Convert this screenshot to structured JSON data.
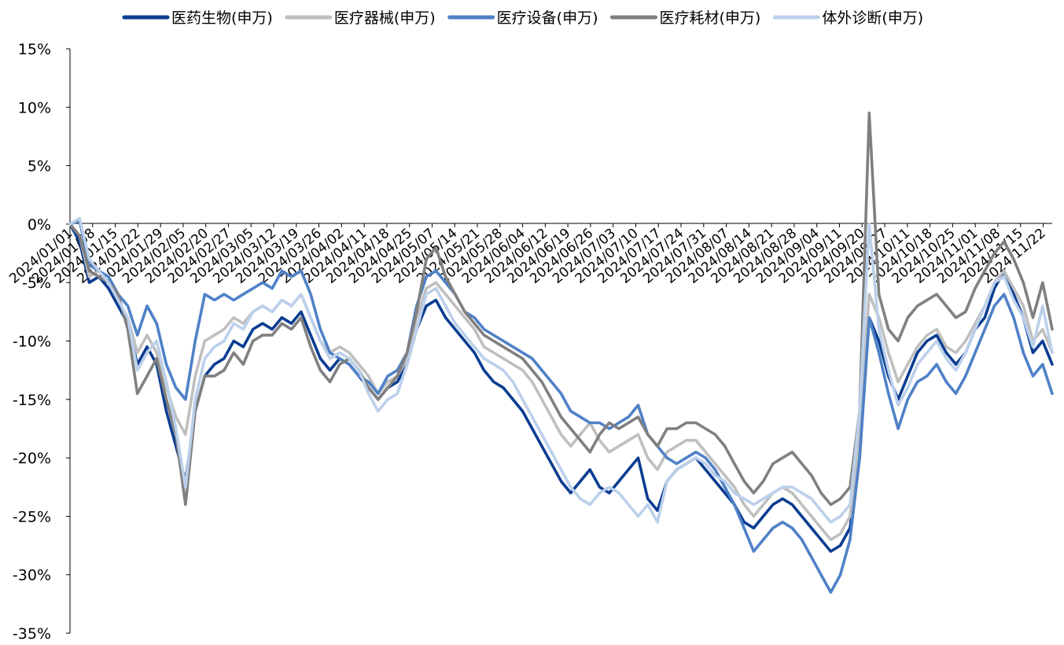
{
  "chart_data": {
    "type": "line",
    "title": "",
    "xlabel": "",
    "ylabel": "",
    "ylim": [
      -35,
      15
    ],
    "yticks": [
      15,
      10,
      5,
      0,
      -5,
      -10,
      -15,
      -20,
      -25,
      -30,
      -35
    ],
    "ytick_labels": [
      "15%",
      "10%",
      "5%",
      "0%",
      "-5%",
      "-10%",
      "-15%",
      "-20%",
      "-25%",
      "-30%",
      "-35%"
    ],
    "xlim": [
      "2024/01/01",
      "2024/11/29"
    ],
    "xtick_labels": [
      "2024/01/01",
      "2024/01/08",
      "2024/01/15",
      "2024/01/22",
      "2024/01/29",
      "2024/02/05",
      "2024/02/20",
      "2024/02/27",
      "2024/03/05",
      "2024/03/12",
      "2024/03/19",
      "2024/03/26",
      "2024/04/02",
      "2024/04/11",
      "2024/04/18",
      "2024/04/25",
      "2024/05/07",
      "2024/05/14",
      "2024/05/21",
      "2024/05/28",
      "2024/06/04",
      "2024/06/12",
      "2024/06/19",
      "2024/06/26",
      "2024/07/03",
      "2024/07/10",
      "2024/07/17",
      "2024/07/24",
      "2024/07/31",
      "2024/08/07",
      "2024/08/14",
      "2024/08/21",
      "2024/08/28",
      "2024/09/04",
      "2024/09/11",
      "2024/09/20",
      "2024/09/27",
      "2024/10/11",
      "2024/10/18",
      "2024/10/25",
      "2024/11/01",
      "2024/11/08",
      "2024/11/15",
      "2024/11/22"
    ],
    "grid": false,
    "legend": "top",
    "series": [
      {
        "name": "医药生物(申万)",
        "color": "#0B3D91",
        "values": [
          0.0,
          -1.5,
          -5.0,
          -4.5,
          -5.5,
          -7.0,
          -8.5,
          -12.0,
          -10.5,
          -12.0,
          -16.0,
          -19.0,
          -22.0,
          -16.0,
          -13.0,
          -12.0,
          -11.5,
          -10.0,
          -10.5,
          -9.0,
          -8.5,
          -9.0,
          -8.0,
          -8.5,
          -7.5,
          -9.5,
          -11.5,
          -12.5,
          -11.5,
          -12.0,
          -13.0,
          -14.0,
          -15.0,
          -14.0,
          -13.5,
          -12.0,
          -9.0,
          -7.0,
          -6.5,
          -8.0,
          -9.0,
          -10.0,
          -11.0,
          -12.5,
          -13.5,
          -14.0,
          -15.0,
          -16.0,
          -17.5,
          -19.0,
          -20.5,
          -22.0,
          -23.0,
          -22.0,
          -21.0,
          -22.5,
          -23.0,
          -22.0,
          -21.0,
          -20.0,
          -23.5,
          -24.5,
          -22.0,
          -21.0,
          -20.5,
          -20.0,
          -21.0,
          -22.0,
          -23.0,
          -24.0,
          -25.5,
          -26.0,
          -25.0,
          -24.0,
          -23.5,
          -24.0,
          -25.0,
          -26.0,
          -27.0,
          -28.0,
          -27.5,
          -26.0,
          -20.0,
          -8.0,
          -10.0,
          -13.0,
          -15.0,
          -13.0,
          -11.0,
          -10.0,
          -9.5,
          -11.0,
          -12.0,
          -11.0,
          -9.0,
          -8.0,
          -5.5,
          -4.0,
          -6.0,
          -8.0,
          -11.0,
          -10.0,
          -12.0
        ]
      },
      {
        "name": "医疗器械(申万)",
        "color": "#BFBFBF",
        "values": [
          0.0,
          -1.0,
          -4.5,
          -4.0,
          -5.0,
          -6.5,
          -8.0,
          -11.0,
          -9.5,
          -11.0,
          -14.0,
          -16.5,
          -18.0,
          -13.0,
          -10.0,
          -9.5,
          -9.0,
          -8.0,
          -8.5,
          -7.5,
          -7.0,
          -7.5,
          -6.5,
          -7.0,
          -6.0,
          -8.0,
          -10.0,
          -11.0,
          -10.5,
          -11.0,
          -12.0,
          -13.0,
          -14.5,
          -13.5,
          -13.0,
          -11.5,
          -8.0,
          -5.5,
          -5.0,
          -6.0,
          -7.0,
          -8.0,
          -9.0,
          -10.5,
          -11.0,
          -11.5,
          -12.0,
          -12.5,
          -13.5,
          -15.0,
          -16.5,
          -18.0,
          -19.0,
          -18.0,
          -17.0,
          -18.5,
          -19.5,
          -19.0,
          -18.5,
          -18.0,
          -20.0,
          -21.0,
          -19.5,
          -19.0,
          -18.5,
          -18.5,
          -19.5,
          -20.5,
          -21.5,
          -22.5,
          -24.0,
          -25.0,
          -24.0,
          -23.0,
          -22.5,
          -23.0,
          -24.0,
          -25.0,
          -26.0,
          -27.0,
          -26.5,
          -25.0,
          -18.0,
          -6.0,
          -8.0,
          -11.0,
          -13.5,
          -12.0,
          -10.5,
          -9.5,
          -9.0,
          -10.5,
          -11.0,
          -10.0,
          -8.5,
          -7.0,
          -5.0,
          -4.0,
          -5.5,
          -7.0,
          -10.0,
          -9.0,
          -11.0
        ]
      },
      {
        "name": "医疗设备(申万)",
        "color": "#4F81C7",
        "values": [
          0.0,
          0.3,
          -3.5,
          -4.0,
          -4.5,
          -6.0,
          -7.0,
          -9.5,
          -7.0,
          -8.5,
          -12.0,
          -14.0,
          -15.0,
          -10.0,
          -6.0,
          -6.5,
          -6.0,
          -6.5,
          -6.0,
          -5.5,
          -5.0,
          -5.5,
          -4.0,
          -4.5,
          -4.0,
          -6.0,
          -9.0,
          -11.0,
          -11.5,
          -12.0,
          -13.0,
          -13.5,
          -14.5,
          -13.0,
          -12.5,
          -11.0,
          -7.0,
          -4.5,
          -4.0,
          -5.0,
          -6.0,
          -7.5,
          -8.0,
          -9.0,
          -9.5,
          -10.0,
          -10.5,
          -11.0,
          -11.5,
          -12.5,
          -13.5,
          -14.5,
          -16.0,
          -16.5,
          -17.0,
          -17.0,
          -17.5,
          -17.0,
          -16.5,
          -15.5,
          -18.0,
          -19.0,
          -20.0,
          -20.5,
          -20.0,
          -19.5,
          -20.0,
          -21.0,
          -22.5,
          -24.0,
          -26.0,
          -28.0,
          -27.0,
          -26.0,
          -25.5,
          -26.0,
          -27.0,
          -28.5,
          -30.0,
          -31.5,
          -30.0,
          -27.0,
          -20.0,
          -8.0,
          -11.0,
          -14.5,
          -17.5,
          -15.0,
          -13.5,
          -13.0,
          -12.0,
          -13.5,
          -14.5,
          -13.0,
          -11.0,
          -9.0,
          -7.0,
          -6.0,
          -8.0,
          -11.0,
          -13.0,
          -12.0,
          -14.5
        ]
      },
      {
        "name": "医疗耗材(申万)",
        "color": "#808080",
        "values": [
          0.0,
          -1.0,
          -4.0,
          -4.5,
          -5.0,
          -6.0,
          -9.0,
          -14.5,
          -13.0,
          -11.5,
          -15.0,
          -18.0,
          -24.0,
          -16.0,
          -13.0,
          -13.0,
          -12.5,
          -11.0,
          -12.0,
          -10.0,
          -9.5,
          -9.5,
          -8.5,
          -9.0,
          -8.0,
          -10.5,
          -12.5,
          -13.5,
          -12.0,
          -11.5,
          -12.5,
          -14.0,
          -15.0,
          -14.0,
          -13.0,
          -11.0,
          -7.5,
          -3.0,
          -2.0,
          -4.5,
          -6.0,
          -7.5,
          -8.5,
          -9.5,
          -10.0,
          -10.5,
          -11.0,
          -11.5,
          -12.5,
          -13.5,
          -15.0,
          -16.5,
          -17.5,
          -18.5,
          -19.5,
          -18.0,
          -17.0,
          -17.5,
          -17.0,
          -16.5,
          -18.0,
          -19.0,
          -17.5,
          -17.5,
          -17.0,
          -17.0,
          -17.5,
          -18.0,
          -19.0,
          -20.5,
          -22.0,
          -23.0,
          -22.0,
          -20.5,
          -20.0,
          -19.5,
          -20.5,
          -21.5,
          -23.0,
          -24.0,
          -23.5,
          -22.5,
          -16.0,
          9.5,
          -6.0,
          -9.0,
          -10.0,
          -8.0,
          -7.0,
          -6.5,
          -6.0,
          -7.0,
          -8.0,
          -7.5,
          -5.5,
          -4.0,
          -2.5,
          -1.5,
          -3.0,
          -5.0,
          -8.0,
          -5.0,
          -9.0
        ]
      },
      {
        "name": "体外诊断(申万)",
        "color": "#BCD0EB",
        "values": [
          0.0,
          0.5,
          -3.0,
          -4.0,
          -5.0,
          -6.5,
          -8.0,
          -12.5,
          -11.0,
          -10.0,
          -13.5,
          -17.5,
          -22.5,
          -15.0,
          -11.5,
          -10.5,
          -10.0,
          -8.5,
          -9.0,
          -7.5,
          -7.0,
          -7.5,
          -6.5,
          -7.0,
          -6.0,
          -8.0,
          -10.0,
          -11.5,
          -11.0,
          -11.5,
          -12.5,
          -14.5,
          -16.0,
          -15.0,
          -14.5,
          -12.0,
          -9.0,
          -6.0,
          -5.5,
          -7.0,
          -8.5,
          -9.5,
          -10.5,
          -11.5,
          -12.0,
          -12.5,
          -13.5,
          -15.0,
          -16.5,
          -18.0,
          -19.5,
          -21.0,
          -22.5,
          -23.5,
          -24.0,
          -23.0,
          -22.5,
          -23.0,
          -24.0,
          -25.0,
          -24.0,
          -25.5,
          -22.0,
          -21.0,
          -20.5,
          -20.0,
          -20.5,
          -21.5,
          -22.0,
          -23.0,
          -23.5,
          -24.0,
          -23.5,
          -23.0,
          -22.5,
          -22.5,
          -23.0,
          -23.5,
          -24.5,
          -25.5,
          -25.0,
          -24.0,
          -16.0,
          0.0,
          -9.0,
          -12.5,
          -15.5,
          -14.0,
          -12.0,
          -11.0,
          -10.0,
          -11.5,
          -12.5,
          -11.0,
          -9.0,
          -7.0,
          -5.0,
          -4.5,
          -6.5,
          -8.0,
          -10.5,
          -7.0,
          -11.0
        ]
      }
    ]
  }
}
